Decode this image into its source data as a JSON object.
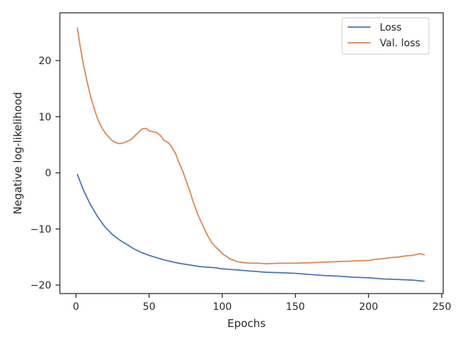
{
  "chart_data": {
    "type": "line",
    "title": "",
    "xlabel": "Epochs",
    "ylabel": "Negative log-likelihood",
    "xlim": [
      -11,
      251
    ],
    "ylim": [
      -21.5,
      28.5
    ],
    "xticks": [
      0,
      50,
      100,
      150,
      200,
      250
    ],
    "yticks": [
      -20,
      -10,
      0,
      10,
      20
    ],
    "grid": false,
    "legend_position": "top-right",
    "series": [
      {
        "name": "Loss",
        "color": "#4c72b0",
        "x": [
          1,
          5,
          10,
          15,
          20,
          25,
          30,
          35,
          40,
          45,
          50,
          55,
          60,
          65,
          70,
          75,
          80,
          85,
          90,
          95,
          100,
          110,
          120,
          130,
          140,
          150,
          160,
          170,
          180,
          190,
          200,
          210,
          220,
          230,
          238
        ],
        "y": [
          -0.3,
          -3.0,
          -5.7,
          -7.9,
          -9.7,
          -11.0,
          -12.0,
          -12.8,
          -13.6,
          -14.2,
          -14.7,
          -15.1,
          -15.5,
          -15.8,
          -16.1,
          -16.3,
          -16.5,
          -16.7,
          -16.8,
          -16.9,
          -17.1,
          -17.3,
          -17.5,
          -17.7,
          -17.8,
          -17.9,
          -18.1,
          -18.3,
          -18.4,
          -18.6,
          -18.7,
          -18.9,
          -19.0,
          -19.1,
          -19.3
        ]
      },
      {
        "name": "Val. loss",
        "color": "#dd8452",
        "x": [
          1,
          3,
          5,
          8,
          10,
          13,
          15,
          18,
          20,
          23,
          25,
          28,
          30,
          32,
          35,
          38,
          40,
          43,
          45,
          48,
          50,
          53,
          55,
          58,
          60,
          63,
          65,
          68,
          70,
          73,
          75,
          78,
          80,
          83,
          85,
          88,
          90,
          93,
          95,
          98,
          100,
          103,
          105,
          108,
          110,
          115,
          120,
          125,
          130,
          140,
          150,
          160,
          170,
          180,
          190,
          200,
          205,
          210,
          215,
          220,
          225,
          230,
          235,
          238
        ],
        "y": [
          25.8,
          22.4,
          19.4,
          15.8,
          13.6,
          11.0,
          9.5,
          7.9,
          7.1,
          6.2,
          5.7,
          5.3,
          5.2,
          5.3,
          5.6,
          6.0,
          6.5,
          7.3,
          7.8,
          7.9,
          7.5,
          7.3,
          7.2,
          6.6,
          5.8,
          5.4,
          4.8,
          3.5,
          2.1,
          0.3,
          -1.2,
          -3.4,
          -5.1,
          -7.2,
          -8.4,
          -10.1,
          -11.2,
          -12.5,
          -13.1,
          -13.8,
          -14.4,
          -14.9,
          -15.3,
          -15.6,
          -15.8,
          -16.0,
          -16.1,
          -16.1,
          -16.2,
          -16.1,
          -16.1,
          -16.0,
          -15.9,
          -15.8,
          -15.7,
          -15.6,
          -15.4,
          -15.3,
          -15.1,
          -15.0,
          -14.8,
          -14.7,
          -14.4,
          -14.6
        ]
      }
    ]
  }
}
